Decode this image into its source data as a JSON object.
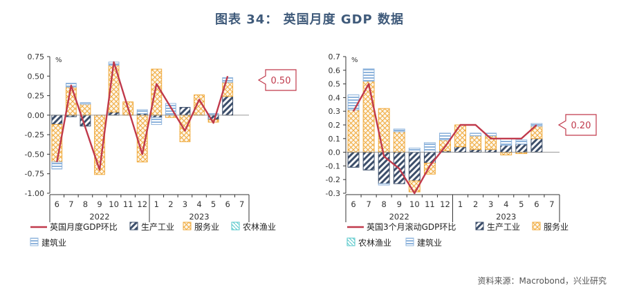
{
  "title": "图表 34： 英国月度 GDP 数据",
  "source": "资料来源：Macrobond，兴业研究",
  "colors": {
    "line": "#c0394b",
    "industry": "#3d4f6b",
    "services": "#f0a93a",
    "agri": "#4fc6c8",
    "construction": "#8fb4dc",
    "callout": "#c0394b",
    "title": "#3f5a7a"
  },
  "chart_data": [
    {
      "type": "bar",
      "stacked": true,
      "ylabel": "%",
      "ylim": [
        -1.0,
        0.75
      ],
      "yticks": [
        0.75,
        0.5,
        0.25,
        0.0,
        -0.25,
        -0.5,
        -0.75,
        -1.0
      ],
      "ytick_labels": [
        "0.75",
        "0.50",
        "0.25",
        "0.00",
        "-0.25",
        "-0.50",
        "-0.75",
        "-1.00"
      ],
      "categories": [
        "6",
        "7",
        "8",
        "9",
        "10",
        "11",
        "12",
        "1",
        "2",
        "3",
        "4",
        "5",
        "6",
        "7"
      ],
      "year_labels": [
        {
          "label": "2022",
          "after_index": 4
        },
        {
          "label": "2023",
          "after_index": 10
        }
      ],
      "series": [
        {
          "name": "生产工业",
          "key": "industry",
          "values": [
            -0.12,
            -0.02,
            -0.14,
            0.0,
            0.04,
            0.0,
            0.02,
            -0.03,
            0.0,
            0.1,
            0.0,
            -0.06,
            0.24,
            null
          ]
        },
        {
          "name": "服务业",
          "key": "services",
          "values": [
            -0.48,
            0.36,
            0.14,
            -0.76,
            0.6,
            0.17,
            -0.6,
            0.59,
            -0.03,
            -0.34,
            0.26,
            -0.03,
            0.18,
            null
          ]
        },
        {
          "name": "农林渔业",
          "key": "agri",
          "values": [
            0.0,
            0.0,
            0.0,
            0.0,
            0.0,
            0.0,
            0.0,
            0.0,
            0.0,
            0.0,
            0.0,
            0.0,
            0.0,
            null
          ]
        },
        {
          "name": "建筑业",
          "key": "construction",
          "values": [
            -0.09,
            0.05,
            0.02,
            0.0,
            0.04,
            0.0,
            0.05,
            -0.09,
            0.15,
            0.0,
            0.0,
            0.02,
            0.06,
            null
          ]
        }
      ],
      "line": {
        "name": "英国月度GDP环比",
        "values": [
          -0.6,
          0.38,
          null,
          -0.7,
          0.68,
          null,
          -0.5,
          0.4,
          null,
          -0.2,
          0.2,
          -0.1,
          0.5,
          null
        ]
      },
      "legend": [
        "英国月度GDP环比",
        "生产工业",
        "服务业",
        "农林渔业",
        "建筑业"
      ],
      "callout": "0.50"
    },
    {
      "type": "bar",
      "stacked": true,
      "ylabel": "%",
      "ylim": [
        -0.3,
        0.7
      ],
      "yticks": [
        0.7,
        0.6,
        0.5,
        0.4,
        0.3,
        0.2,
        0.1,
        0.0,
        -0.1,
        -0.2,
        -0.3
      ],
      "ytick_labels": [
        "0.7",
        "0.6",
        "0.5",
        "0.4",
        "0.3",
        "0.2",
        "0.1",
        "0.0",
        "-0.1",
        "-0.2",
        "-0.3"
      ],
      "categories": [
        "6",
        "7",
        "8",
        "9",
        "10",
        "11",
        "12",
        "1",
        "2",
        "3",
        "4",
        "5",
        "6",
        "7"
      ],
      "year_labels": [
        {
          "label": "2022",
          "after_index": 4
        },
        {
          "label": "2023",
          "after_index": 10
        }
      ],
      "series": [
        {
          "name": "生产工业",
          "key": "industry",
          "values": [
            -0.11,
            -0.13,
            -0.23,
            -0.23,
            -0.21,
            -0.08,
            0.01,
            0.04,
            0.02,
            0.02,
            0.05,
            0.06,
            0.1,
            null
          ]
        },
        {
          "name": "服务业",
          "key": "services",
          "values": [
            0.31,
            0.52,
            0.32,
            0.15,
            -0.08,
            -0.08,
            0.08,
            0.16,
            0.1,
            0.1,
            -0.02,
            -0.01,
            0.09,
            null
          ]
        },
        {
          "name": "农林渔业",
          "key": "agri",
          "values": [
            0.0,
            0.0,
            0.0,
            0.0,
            0.0,
            0.0,
            0.0,
            0.0,
            0.0,
            0.0,
            0.0,
            0.0,
            0.0,
            null
          ]
        },
        {
          "name": "建筑业",
          "key": "construction",
          "values": [
            0.11,
            0.09,
            -0.01,
            0.02,
            0.03,
            0.07,
            0.05,
            0.0,
            0.02,
            0.02,
            0.05,
            0.03,
            0.02,
            null
          ]
        }
      ],
      "line": {
        "name": "英国3个月滚动GDP环比",
        "values": [
          0.3,
          0.5,
          -0.03,
          -0.12,
          -0.3,
          -0.1,
          0.04,
          0.2,
          0.2,
          0.1,
          0.1,
          0.1,
          0.2,
          null
        ]
      },
      "legend": [
        "英国3个月滚动GDP环比",
        "生产工业",
        "服务业",
        "农林渔业",
        "建筑业"
      ],
      "callout": "0.20"
    }
  ]
}
